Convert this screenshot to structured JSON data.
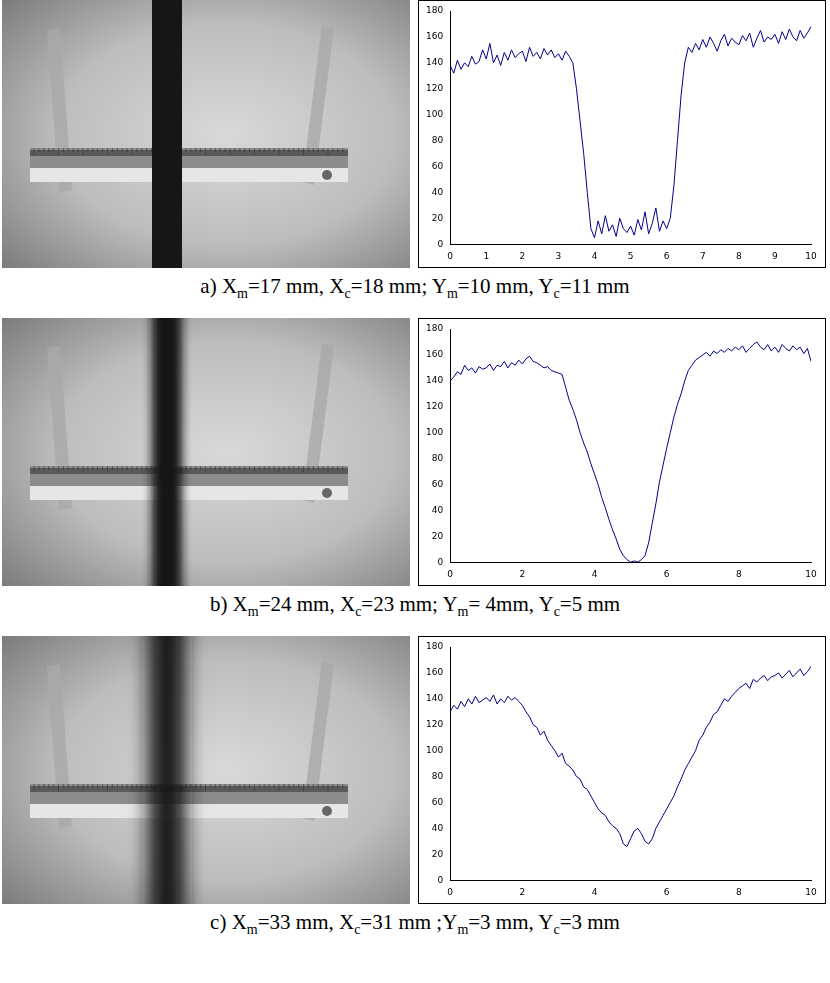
{
  "chart_data": [
    {
      "type": "line",
      "caption": [
        {
          "text": "a) X"
        },
        {
          "sub": "m"
        },
        {
          "text": "=17 mm, X"
        },
        {
          "sub": "c"
        },
        {
          "text": "=18 mm; Y"
        },
        {
          "sub": "m"
        },
        {
          "text": "=10 mm, Y"
        },
        {
          "sub": "c"
        },
        {
          "text": "=11 mm"
        }
      ],
      "color": "#00008b",
      "grid": false,
      "xlim": [
        0,
        10
      ],
      "xticks": [
        0,
        1,
        2,
        3,
        4,
        5,
        6,
        7,
        8,
        9,
        10
      ],
      "ylim": [
        0,
        180
      ],
      "yticks": [
        0,
        20,
        40,
        60,
        80,
        100,
        120,
        140,
        160,
        180
      ],
      "x": [
        0,
        0.1,
        0.2,
        0.3,
        0.4,
        0.5,
        0.6,
        0.7,
        0.8,
        0.9,
        1,
        1.1,
        1.2,
        1.3,
        1.4,
        1.5,
        1.6,
        1.7,
        1.8,
        1.9,
        2,
        2.1,
        2.2,
        2.3,
        2.4,
        2.5,
        2.6,
        2.7,
        2.8,
        2.9,
        3,
        3.1,
        3.2,
        3.3,
        3.4,
        3.5,
        3.6,
        3.7,
        3.8,
        3.9,
        4,
        4.1,
        4.2,
        4.3,
        4.4,
        4.5,
        4.6,
        4.7,
        4.8,
        4.9,
        5,
        5.1,
        5.2,
        5.3,
        5.4,
        5.5,
        5.6,
        5.7,
        5.8,
        5.9,
        6,
        6.1,
        6.2,
        6.3,
        6.4,
        6.5,
        6.6,
        6.7,
        6.8,
        6.9,
        7,
        7.1,
        7.2,
        7.3,
        7.4,
        7.5,
        7.6,
        7.7,
        7.8,
        7.9,
        8,
        8.1,
        8.2,
        8.3,
        8.4,
        8.5,
        8.6,
        8.7,
        8.8,
        8.9,
        9,
        9.1,
        9.2,
        9.3,
        9.4,
        9.5,
        9.6,
        9.7,
        9.8,
        9.9,
        10
      ],
      "values": [
        138,
        132,
        142,
        135,
        140,
        137,
        145,
        139,
        141,
        150,
        143,
        155,
        140,
        146,
        138,
        148,
        142,
        150,
        144,
        147,
        149,
        141,
        152,
        145,
        148,
        143,
        151,
        146,
        150,
        144,
        147,
        142,
        149,
        145,
        140,
        120,
        95,
        70,
        40,
        12,
        5,
        18,
        8,
        22,
        10,
        15,
        6,
        20,
        12,
        9,
        14,
        7,
        19,
        11,
        25,
        8,
        16,
        28,
        10,
        18,
        12,
        20,
        45,
        80,
        115,
        140,
        152,
        148,
        155,
        150,
        158,
        152,
        160,
        155,
        149,
        157,
        162,
        153,
        159,
        156,
        154,
        161,
        157,
        163,
        152,
        159,
        165,
        156,
        160,
        158,
        162,
        155,
        164,
        158,
        166,
        160,
        157,
        165,
        159,
        163,
        168
      ]
    },
    {
      "type": "line",
      "caption": [
        {
          "text": "b) X"
        },
        {
          "sub": "m"
        },
        {
          "text": "=24 mm, X"
        },
        {
          "sub": "c"
        },
        {
          "text": "=23 mm; Y"
        },
        {
          "sub": "m"
        },
        {
          "text": "= 4mm, Y"
        },
        {
          "sub": "c"
        },
        {
          "text": "=5 mm"
        }
      ],
      "color": "#00008b",
      "grid": false,
      "xlim": [
        0,
        10
      ],
      "xticks": [
        0,
        2,
        4,
        6,
        8,
        10
      ],
      "ylim": [
        0,
        180
      ],
      "yticks": [
        0,
        20,
        40,
        60,
        80,
        100,
        120,
        140,
        160,
        180
      ],
      "x": [
        0,
        0.1,
        0.2,
        0.3,
        0.4,
        0.5,
        0.6,
        0.7,
        0.8,
        0.9,
        1,
        1.1,
        1.2,
        1.3,
        1.4,
        1.5,
        1.6,
        1.7,
        1.8,
        1.9,
        2,
        2.1,
        2.2,
        2.3,
        2.4,
        2.5,
        2.6,
        2.7,
        2.8,
        2.9,
        3,
        3.1,
        3.2,
        3.3,
        3.4,
        3.5,
        3.6,
        3.7,
        3.8,
        3.9,
        4,
        4.1,
        4.2,
        4.3,
        4.4,
        4.5,
        4.6,
        4.7,
        4.8,
        4.9,
        5,
        5.1,
        5.2,
        5.3,
        5.4,
        5.5,
        5.6,
        5.7,
        5.8,
        5.9,
        6,
        6.1,
        6.2,
        6.3,
        6.4,
        6.5,
        6.6,
        6.7,
        6.8,
        6.9,
        7,
        7.1,
        7.2,
        7.3,
        7.4,
        7.5,
        7.6,
        7.7,
        7.8,
        7.9,
        8,
        8.1,
        8.2,
        8.3,
        8.4,
        8.5,
        8.6,
        8.7,
        8.8,
        8.9,
        9,
        9.1,
        9.2,
        9.3,
        9.4,
        9.5,
        9.6,
        9.7,
        9.8,
        9.9,
        10
      ],
      "values": [
        140,
        143,
        147,
        145,
        152,
        148,
        150,
        146,
        151,
        149,
        150,
        153,
        148,
        152,
        151,
        155,
        150,
        154,
        152,
        156,
        153,
        157,
        159,
        155,
        154,
        152,
        150,
        151,
        148,
        147,
        146,
        145,
        135,
        125,
        118,
        110,
        100,
        92,
        85,
        76,
        68,
        60,
        50,
        42,
        33,
        25,
        18,
        10,
        5,
        2,
        0,
        1,
        0,
        2,
        5,
        15,
        30,
        45,
        62,
        75,
        88,
        100,
        112,
        122,
        130,
        140,
        148,
        152,
        156,
        158,
        160,
        162,
        159,
        163,
        161,
        164,
        162,
        165,
        163,
        166,
        164,
        167,
        162,
        165,
        168,
        170,
        166,
        164,
        168,
        163,
        166,
        162,
        168,
        165,
        163,
        167,
        164,
        166,
        161,
        165,
        155
      ]
    },
    {
      "type": "line",
      "caption": [
        {
          "text": "c) X"
        },
        {
          "sub": "m"
        },
        {
          "text": "=33 mm, X"
        },
        {
          "sub": "c"
        },
        {
          "text": "=31 mm ;Y"
        },
        {
          "sub": "m"
        },
        {
          "text": "=3 mm, Y"
        },
        {
          "sub": "c"
        },
        {
          "text": "=3 mm"
        }
      ],
      "color": "#00008b",
      "grid": false,
      "xlim": [
        0,
        10
      ],
      "xticks": [
        0,
        2,
        4,
        6,
        8,
        10
      ],
      "ylim": [
        0,
        180
      ],
      "yticks": [
        0,
        20,
        40,
        60,
        80,
        100,
        120,
        140,
        160,
        180
      ],
      "x": [
        0,
        0.1,
        0.2,
        0.3,
        0.4,
        0.5,
        0.6,
        0.7,
        0.8,
        0.9,
        1,
        1.1,
        1.2,
        1.3,
        1.4,
        1.5,
        1.6,
        1.7,
        1.8,
        1.9,
        2,
        2.1,
        2.2,
        2.3,
        2.4,
        2.5,
        2.6,
        2.7,
        2.8,
        2.9,
        3,
        3.1,
        3.2,
        3.3,
        3.4,
        3.5,
        3.6,
        3.7,
        3.8,
        3.9,
        4,
        4.1,
        4.2,
        4.3,
        4.4,
        4.5,
        4.6,
        4.7,
        4.8,
        4.9,
        5,
        5.1,
        5.2,
        5.3,
        5.4,
        5.5,
        5.6,
        5.7,
        5.8,
        5.9,
        6,
        6.1,
        6.2,
        6.3,
        6.4,
        6.5,
        6.6,
        6.7,
        6.8,
        6.9,
        7,
        7.1,
        7.2,
        7.3,
        7.4,
        7.5,
        7.6,
        7.7,
        7.8,
        7.9,
        8,
        8.1,
        8.2,
        8.3,
        8.4,
        8.5,
        8.6,
        8.7,
        8.8,
        8.9,
        9,
        9.1,
        9.2,
        9.3,
        9.4,
        9.5,
        9.6,
        9.7,
        9.8,
        9.9,
        10
      ],
      "values": [
        130,
        135,
        132,
        138,
        134,
        140,
        136,
        142,
        137,
        139,
        141,
        138,
        143,
        136,
        140,
        137,
        142,
        139,
        141,
        138,
        135,
        130,
        126,
        120,
        118,
        112,
        115,
        108,
        104,
        100,
        95,
        98,
        90,
        88,
        85,
        80,
        78,
        72,
        70,
        65,
        60,
        55,
        52,
        50,
        45,
        42,
        40,
        36,
        28,
        26,
        32,
        38,
        40,
        36,
        30,
        28,
        32,
        40,
        45,
        50,
        55,
        60,
        65,
        72,
        78,
        85,
        90,
        95,
        100,
        108,
        112,
        118,
        122,
        128,
        130,
        135,
        140,
        138,
        142,
        145,
        148,
        150,
        152,
        148,
        155,
        153,
        156,
        158,
        154,
        157,
        158,
        160,
        156,
        159,
        162,
        157,
        160,
        163,
        158,
        161,
        165
      ]
    }
  ]
}
